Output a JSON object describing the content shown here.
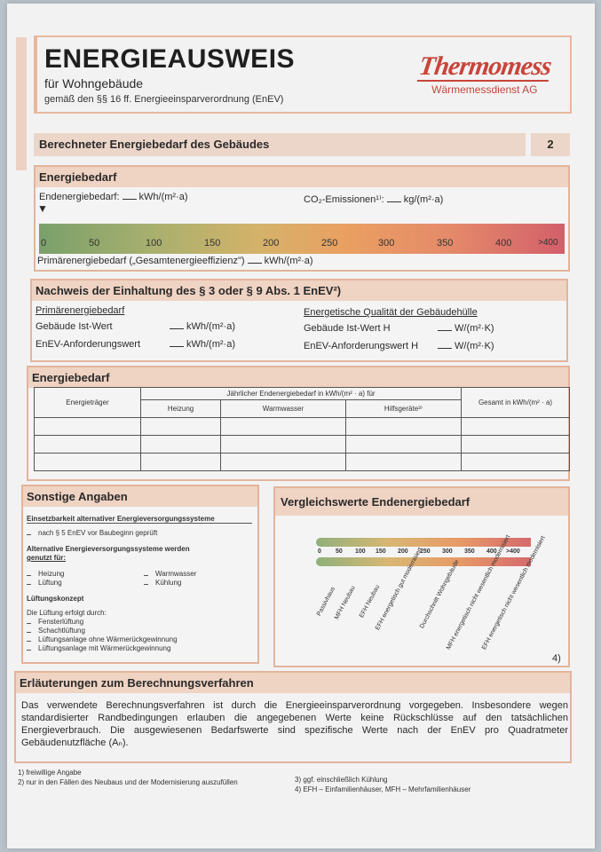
{
  "header": {
    "title": "ENERGIEAUSWEIS",
    "subtitle": "für Wohngebäude",
    "legal": "gemäß den §§ 16 ff. Energieeinsparverordnung (EnEV)",
    "logo_main": "Thermomess",
    "logo_sub": "Wärmemessdienst AG"
  },
  "section_bar": {
    "title": "Berechneter Energiebedarf des Gebäudes",
    "page": "2"
  },
  "energiebedarf": {
    "heading": "Energiebedarf",
    "endenergie_label": "Endenergiebedarf:",
    "endenergie_unit": "kWh/(m²·a)",
    "co2_label": "CO₂-Emissionen¹⁾:",
    "co2_unit": "kg/(m²·a)",
    "marker": "▼",
    "scale_ticks": [
      "0",
      "50",
      "100",
      "150",
      "200",
      "250",
      "300",
      "350",
      "400",
      ">400"
    ],
    "primaer_label": "Primärenergiebedarf („Gesamtenergieeffizienz\")",
    "primaer_unit": "kWh/(m²·a)"
  },
  "nachweis": {
    "heading": "Nachweis der Einhaltung des § 3 oder § 9 Abs. 1 EnEV²)",
    "left_title": "Primärenergiebedarf",
    "left_row1": "Gebäude Ist-Wert",
    "left_row2": "EnEV-Anforderungswert",
    "left_unit": "kWh/(m²·a)",
    "right_title": "Energetische Qualität der Gebäudehülle",
    "right_row1": "Gebäude Ist-Wert H",
    "right_row2": "EnEV-Anforderungswert H",
    "right_unit": "W/(m²·K)"
  },
  "tabelle": {
    "heading": "Energiebedarf",
    "col_traeger": "Energieträger",
    "col_group": "Jährlicher Endenergiebedarf in kWh/(m² · a) für",
    "col_heizung": "Heizung",
    "col_warmwasser": "Warmwasser",
    "col_hilfsgeraete": "Hilfsgeräte³⁾",
    "col_gesamt": "Gesamt in kWh/(m² · a)"
  },
  "sonstige": {
    "heading": "Sonstige Angaben",
    "einsetz_title": "Einsetzbarkeit alternativer Energieversorgungssysteme",
    "einsetz_item": "nach § 5 EnEV vor Baubeginn geprüft",
    "alt_title_1": "Alternative Energieversorgungssysteme werden",
    "alt_title_2": "genutzt für:",
    "heizung": "Heizung",
    "lueftung": "Lüftung",
    "warmwasser": "Warmwasser",
    "kuehlung": "Kühlung",
    "lueftungskonzept": "Lüftungskonzept",
    "lueftung_intro": "Die Lüftung erfolgt durch:",
    "opt1": "Fensterlüftung",
    "opt2": "Schachtlüftung",
    "opt3": "Lüftungsanlage ohne Wärmerückgewinnung",
    "opt4": "Lüftungsanlage mit Wärmerückgewinnung"
  },
  "vergleich": {
    "heading": "Vergleichswerte Endenergiebedarf",
    "ticks": [
      "0",
      "50",
      "100",
      "150",
      "200",
      "250",
      "300",
      "350",
      "400",
      ">400"
    ],
    "labels": [
      "Passivhaus",
      "MFH Neubau",
      "EFH Neubau",
      "EFH energetisch gut modernisiert",
      "Durchschnitt Wohngebäude",
      "MFH energetisch nicht wesentlich modernisiert",
      "EFH energetisch nicht wesentlich modernisiert"
    ],
    "footnote": "4)"
  },
  "erlaeuterung": {
    "heading": "Erläuterungen zum Berechnungsverfahren",
    "text": "Das verwendete Berechnungsverfahren ist durch die Energieeinsparverordnung vorgegeben. Insbesondere wegen standardisierter Randbedingungen erlauben die angegebenen Werte keine Rückschlüsse auf den tatsächlichen Energieverbrauch. Die ausgewiesenen Bedarfswerte sind spezifische Werte nach der EnEV pro Quadratmeter Gebäudenutzfläche (Aₙ)."
  },
  "footnotes": {
    "f1": "1) freiwillige Angabe",
    "f2": "2) nur in den Fällen des Neubaus und der Modernisierung auszufüllen",
    "f3": "3) ggf. einschließlich Kühlung",
    "f4": "4) EFH – Einfamilienhäuser, MFH – Mehrfamilienhäuser"
  }
}
